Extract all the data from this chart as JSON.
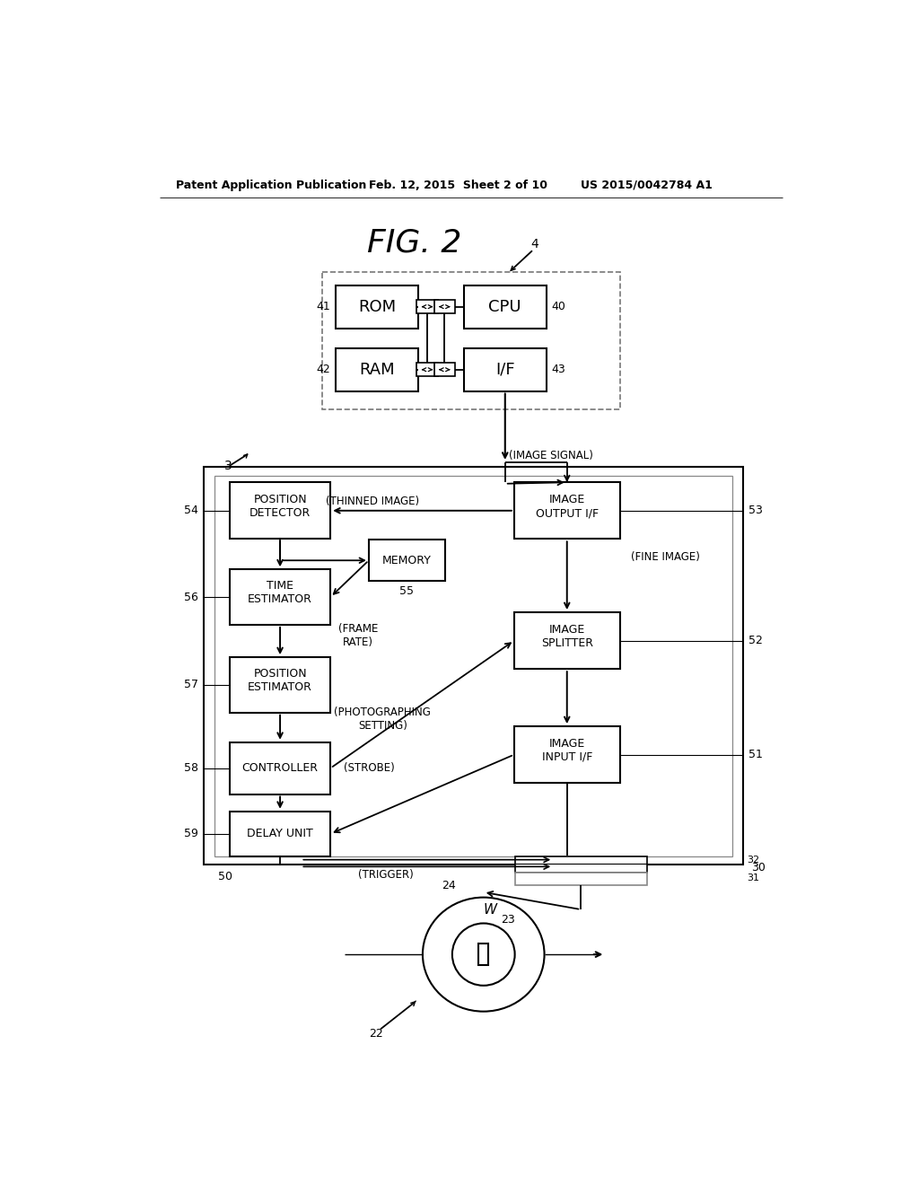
{
  "bg": "#ffffff",
  "header_left": "Patent Application Publication",
  "header_mid": "Feb. 12, 2015  Sheet 2 of 10",
  "header_right": "US 2015/0042784 A1",
  "fig_title": "FIG. 2"
}
